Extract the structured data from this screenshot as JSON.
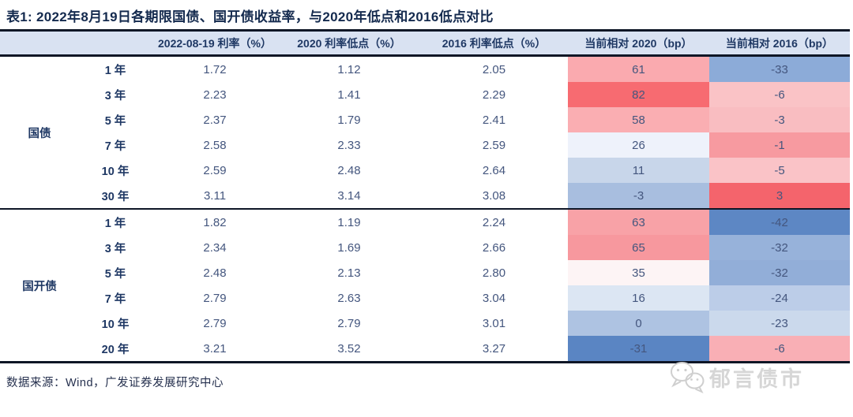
{
  "title": "表1:  2022年8月19日各期限国债、国开债收益率，与2020年低点和2016低点对比",
  "colors": {
    "header_bg": "#D9E2F2",
    "border_dark": "#0E1626",
    "header_text": "#1F3864",
    "value_text": "#44567E",
    "watermark_gray": "#D6D6D6"
  },
  "chart_data": {
    "type": "table",
    "title": "2022年8月19日各期限国债、国开债收益率，与2020年低点和2016低点对比",
    "columns": [
      "2022-08-19 利率（%）",
      "2020 利率低点（%）",
      "2016 利率低点（%）",
      "当前相对 2020（bp）",
      "当前相对 2016（bp）"
    ],
    "sections": [
      {
        "group": "国债",
        "rows": [
          {
            "tenor": "1 年",
            "rate_2022": "1.72",
            "low_2020": "1.12",
            "low_2016": "2.05",
            "vs_2020": "61",
            "vs_2016": "-33",
            "vs_2020_bg": "#FAAAAF",
            "vs_2016_bg": "#8CABD8"
          },
          {
            "tenor": "3 年",
            "rate_2022": "2.23",
            "low_2020": "1.41",
            "low_2016": "2.29",
            "vs_2020": "82",
            "vs_2016": "-6",
            "vs_2020_bg": "#F76B71",
            "vs_2016_bg": "#FAC3C6"
          },
          {
            "tenor": "5 年",
            "rate_2022": "2.37",
            "low_2020": "1.79",
            "low_2016": "2.41",
            "vs_2020": "58",
            "vs_2016": "-3",
            "vs_2020_bg": "#FAAEB2",
            "vs_2016_bg": "#F9BDC1"
          },
          {
            "tenor": "7 年",
            "rate_2022": "2.58",
            "low_2020": "2.33",
            "low_2016": "2.59",
            "vs_2020": "26",
            "vs_2016": "-1",
            "vs_2020_bg": "#EEF2FB",
            "vs_2016_bg": "#F79AA0"
          },
          {
            "tenor": "10 年",
            "rate_2022": "2.59",
            "low_2020": "2.48",
            "low_2016": "2.64",
            "vs_2020": "11",
            "vs_2016": "-5",
            "vs_2020_bg": "#C8D6EA",
            "vs_2016_bg": "#FAC3C7"
          },
          {
            "tenor": "30 年",
            "rate_2022": "3.11",
            "low_2020": "3.14",
            "low_2016": "3.08",
            "vs_2020": "-3",
            "vs_2016": "3",
            "vs_2020_bg": "#A8BEDF",
            "vs_2016_bg": "#F4646C"
          }
        ]
      },
      {
        "group": "国开债",
        "rows": [
          {
            "tenor": "1 年",
            "rate_2022": "1.82",
            "low_2020": "1.19",
            "low_2016": "2.24",
            "vs_2020": "63",
            "vs_2016": "-42",
            "vs_2020_bg": "#F8A2A7",
            "vs_2016_bg": "#5D87C4"
          },
          {
            "tenor": "3 年",
            "rate_2022": "2.34",
            "low_2020": "1.69",
            "low_2016": "2.66",
            "vs_2020": "65",
            "vs_2016": "-32",
            "vs_2020_bg": "#F7989E",
            "vs_2016_bg": "#97B2DA"
          },
          {
            "tenor": "5 年",
            "rate_2022": "2.48",
            "low_2020": "2.13",
            "low_2016": "2.80",
            "vs_2020": "35",
            "vs_2016": "-32",
            "vs_2020_bg": "#FDF4F5",
            "vs_2016_bg": "#92AED8"
          },
          {
            "tenor": "7 年",
            "rate_2022": "2.79",
            "low_2020": "2.63",
            "low_2016": "3.04",
            "vs_2020": "16",
            "vs_2016": "-24",
            "vs_2020_bg": "#DCE6F3",
            "vs_2016_bg": "#BCCDE8"
          },
          {
            "tenor": "10 年",
            "rate_2022": "2.79",
            "low_2020": "2.79",
            "low_2016": "3.01",
            "vs_2020": "0",
            "vs_2016": "-23",
            "vs_2020_bg": "#AEC3E2",
            "vs_2016_bg": "#CBD9EC"
          },
          {
            "tenor": "20 年",
            "rate_2022": "3.21",
            "low_2020": "3.52",
            "low_2016": "3.27",
            "vs_2020": "-31",
            "vs_2016": "-6",
            "vs_2020_bg": "#5A85C3",
            "vs_2016_bg": "#F9AFB5"
          }
        ]
      }
    ]
  },
  "footer": {
    "source": "数据来源：Wind，广发证券发展研究中心"
  },
  "watermark": {
    "text": "郁言债市",
    "icon": "wechat-icon"
  }
}
